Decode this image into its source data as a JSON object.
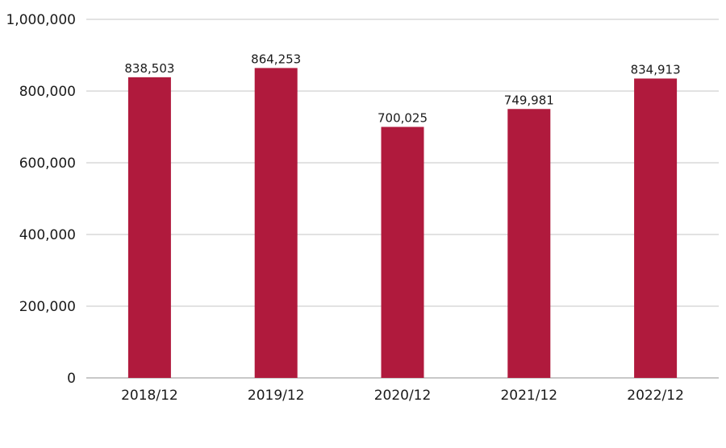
{
  "chart_data": {
    "type": "bar",
    "categories": [
      "2018/12",
      "2019/12",
      "2020/12",
      "2021/12",
      "2022/12"
    ],
    "values": [
      838503,
      864253,
      700025,
      749981,
      834913
    ],
    "value_labels": [
      "838,503",
      "864,253",
      "700,025",
      "749,981",
      "834,913"
    ],
    "yticks": [
      0,
      200000,
      400000,
      600000,
      800000,
      1000000
    ],
    "ytick_labels": [
      "0",
      "200,000",
      "400,000",
      "600,000",
      "800,000",
      "1,000,000"
    ],
    "ylim": [
      0,
      1000000
    ],
    "grid": true,
    "legend": "none",
    "bar_color": "#b01a3d",
    "grid_color": "#d9d9d9"
  }
}
